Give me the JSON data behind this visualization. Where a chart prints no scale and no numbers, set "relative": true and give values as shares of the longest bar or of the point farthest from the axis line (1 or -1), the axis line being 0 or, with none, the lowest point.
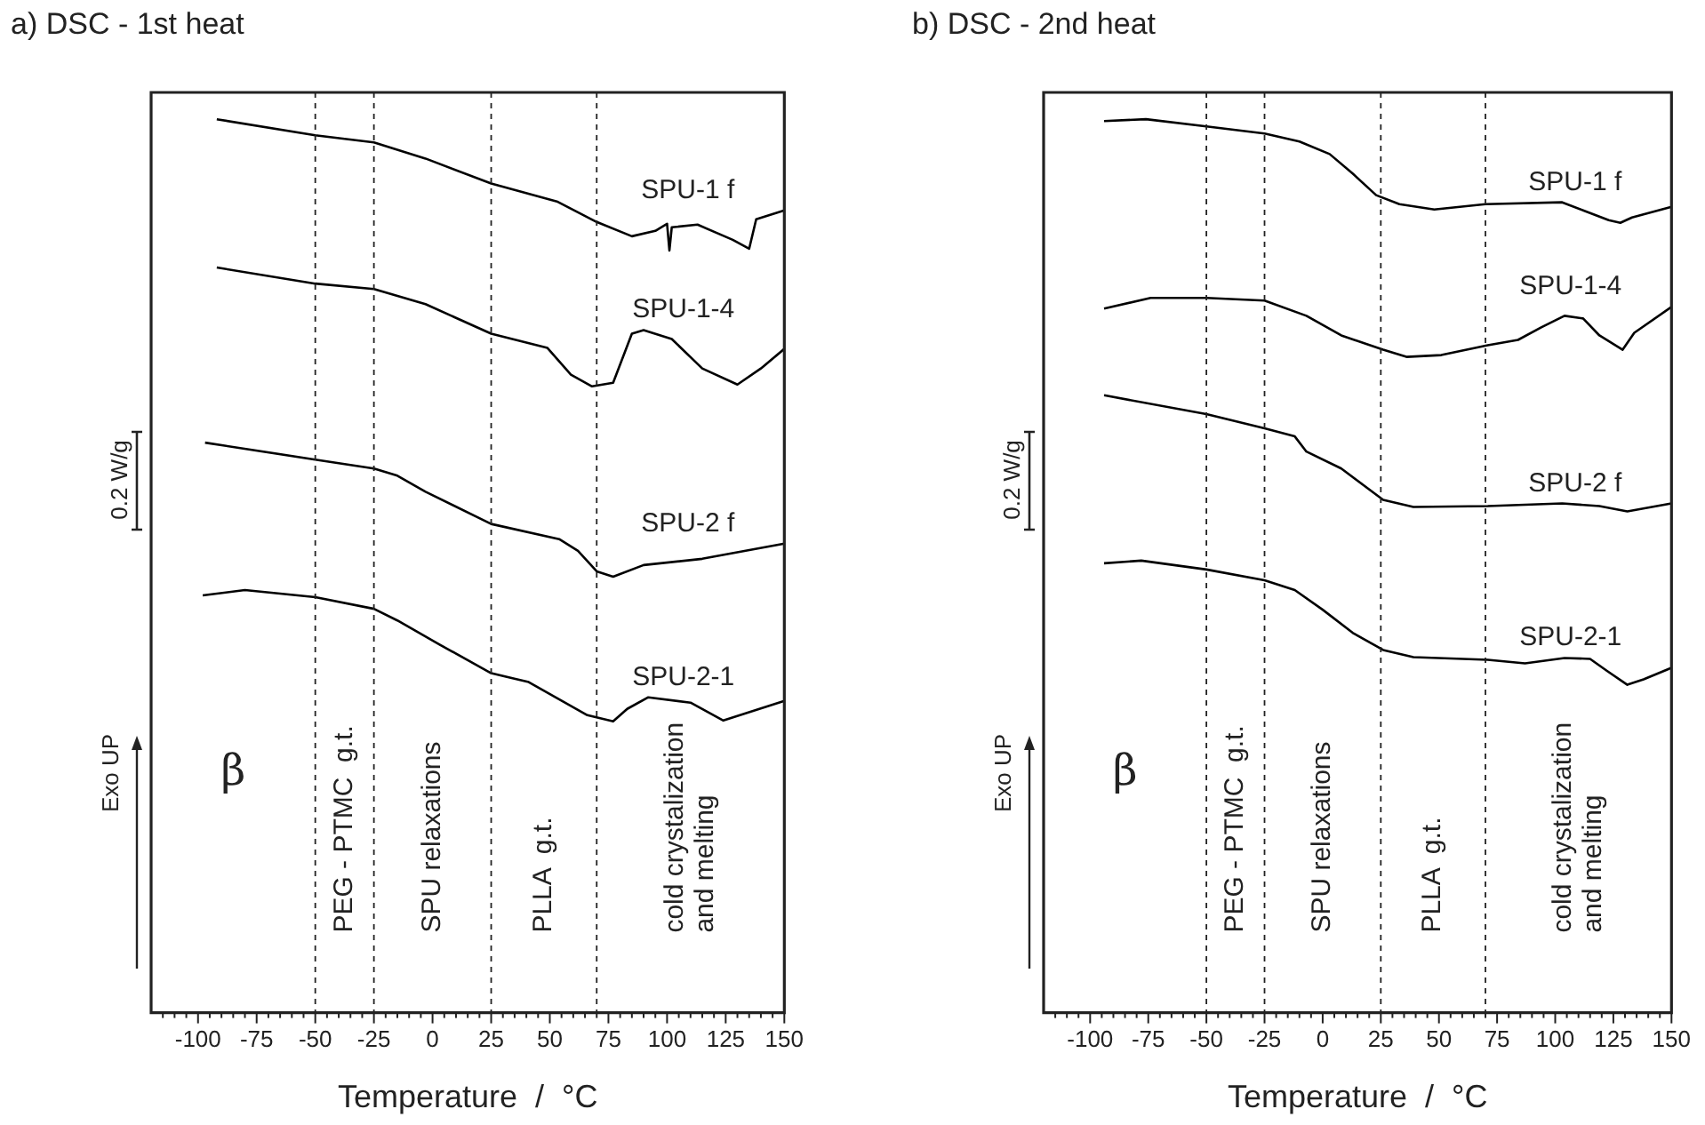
{
  "chart_data": [
    {
      "type": "line",
      "title": "a) DSC - 1st heat",
      "xlabel": "Temperature  /  °C",
      "relative": true,
      "xlim": [
        -120,
        150
      ],
      "xticks": [
        {
          "value": -115,
          "label": null
        },
        {
          "value": -110,
          "label": null
        },
        {
          "value": -105,
          "label": null
        },
        -100,
        {
          "value": -95,
          "label": null
        },
        {
          "value": -90,
          "label": null
        },
        {
          "value": -85,
          "label": null
        },
        {
          "value": -80,
          "label": null
        },
        -75,
        {
          "value": -70,
          "label": null
        },
        {
          "value": -65,
          "label": null
        },
        {
          "value": -60,
          "label": null
        },
        {
          "value": -55,
          "label": null
        },
        -50,
        {
          "value": -45,
          "label": null
        },
        {
          "value": -40,
          "label": null
        },
        {
          "value": -35,
          "label": null
        },
        {
          "value": -30,
          "label": null
        },
        -25,
        {
          "value": -20,
          "label": null
        },
        {
          "value": -15,
          "label": null
        },
        {
          "value": -10,
          "label": null
        },
        {
          "value": -5,
          "label": null
        },
        0,
        {
          "value": 5,
          "label": null
        },
        {
          "value": 10,
          "label": null
        },
        {
          "value": 15,
          "label": null
        },
        {
          "value": 20,
          "label": null
        },
        25,
        {
          "value": 30,
          "label": null
        },
        {
          "value": 35,
          "label": null
        },
        {
          "value": 40,
          "label": null
        },
        {
          "value": 45,
          "label": null
        },
        50,
        {
          "value": 55,
          "label": null
        },
        {
          "value": 60,
          "label": null
        },
        {
          "value": 65,
          "label": null
        },
        {
          "value": 70,
          "label": null
        },
        75,
        {
          "value": 80,
          "label": null
        },
        {
          "value": 85,
          "label": null
        },
        {
          "value": 90,
          "label": null
        },
        {
          "value": 95,
          "label": null
        },
        100,
        {
          "value": 105,
          "label": null
        },
        {
          "value": 110,
          "label": null
        },
        {
          "value": 115,
          "label": null
        },
        {
          "value": 120,
          "label": null
        },
        125,
        {
          "value": 130,
          "label": null
        },
        {
          "value": 135,
          "label": null
        },
        {
          "value": 140,
          "label": null
        },
        {
          "value": 145,
          "label": null
        },
        150
      ],
      "grid": false,
      "legend": false,
      "marker": "none",
      "line_style": "solid",
      "series": [
        {
          "name": "SPU-1 f",
          "color": "#000000",
          "x": [
            -92,
            -50,
            -25,
            -3,
            25,
            53,
            70,
            85,
            95,
            100,
            101,
            102,
            113,
            128,
            135,
            138,
            150
          ],
          "values": [
            1.0,
            0.982,
            0.974,
            0.956,
            0.928,
            0.908,
            0.885,
            0.869,
            0.875,
            0.883,
            0.853,
            0.879,
            0.882,
            0.865,
            0.855,
            0.888,
            0.898
          ]
        },
        {
          "name": "SPU-1-4",
          "color": "#000000",
          "x": [
            -92,
            -50,
            -25,
            -3,
            25,
            49,
            59,
            68,
            77,
            85,
            90,
            102,
            115,
            130,
            140,
            150
          ],
          "values": [
            0.834,
            0.816,
            0.81,
            0.793,
            0.76,
            0.744,
            0.714,
            0.701,
            0.705,
            0.76,
            0.764,
            0.754,
            0.721,
            0.703,
            0.721,
            0.743
          ]
        },
        {
          "name": "SPU-2 f",
          "color": "#000000",
          "x": [
            -97,
            -50,
            -25,
            -15,
            -3,
            25,
            54,
            62,
            70,
            77,
            90,
            115,
            150
          ],
          "values": [
            0.638,
            0.619,
            0.609,
            0.601,
            0.583,
            0.547,
            0.53,
            0.517,
            0.494,
            0.488,
            0.501,
            0.508,
            0.525
          ]
        },
        {
          "name": "SPU-2-1",
          "color": "#000000",
          "x": [
            -98,
            -80,
            -50,
            -25,
            -15,
            3,
            25,
            41,
            66,
            77,
            83,
            92,
            110,
            124,
            150
          ],
          "values": [
            0.467,
            0.473,
            0.465,
            0.452,
            0.439,
            0.412,
            0.38,
            0.37,
            0.333,
            0.326,
            0.34,
            0.353,
            0.347,
            0.327,
            0.349
          ]
        }
      ],
      "ref_lines": [
        {
          "axis": "x",
          "value": -50,
          "line_style": "dashed"
        },
        {
          "axis": "x",
          "value": -25,
          "line_style": "dashed"
        },
        {
          "axis": "x",
          "value": 25,
          "line_style": "dashed"
        },
        {
          "axis": "x",
          "value": 70,
          "line_style": "dashed"
        }
      ],
      "annotations": [
        "0.2 W/g",
        "Exo UP",
        "β",
        "PEG - PTMC  g.t.",
        "SPU relaxations",
        "PLLA  g.t.",
        "cold crystalization\nand melting"
      ]
    },
    {
      "type": "line",
      "title": "b) DSC - 2nd heat",
      "xlabel": "Temperature  /  °C",
      "relative": true,
      "xlim": [
        -120,
        150
      ],
      "xticks": [
        {
          "value": -115,
          "label": null
        },
        {
          "value": -110,
          "label": null
        },
        {
          "value": -105,
          "label": null
        },
        -100,
        {
          "value": -95,
          "label": null
        },
        {
          "value": -90,
          "label": null
        },
        {
          "value": -85,
          "label": null
        },
        {
          "value": -80,
          "label": null
        },
        -75,
        {
          "value": -70,
          "label": null
        },
        {
          "value": -65,
          "label": null
        },
        {
          "value": -60,
          "label": null
        },
        {
          "value": -55,
          "label": null
        },
        -50,
        {
          "value": -45,
          "label": null
        },
        {
          "value": -40,
          "label": null
        },
        {
          "value": -35,
          "label": null
        },
        {
          "value": -30,
          "label": null
        },
        -25,
        {
          "value": -20,
          "label": null
        },
        {
          "value": -15,
          "label": null
        },
        {
          "value": -10,
          "label": null
        },
        {
          "value": -5,
          "label": null
        },
        0,
        {
          "value": 5,
          "label": null
        },
        {
          "value": 10,
          "label": null
        },
        {
          "value": 15,
          "label": null
        },
        {
          "value": 20,
          "label": null
        },
        25,
        {
          "value": 30,
          "label": null
        },
        {
          "value": 35,
          "label": null
        },
        {
          "value": 40,
          "label": null
        },
        {
          "value": 45,
          "label": null
        },
        50,
        {
          "value": 55,
          "label": null
        },
        {
          "value": 60,
          "label": null
        },
        {
          "value": 65,
          "label": null
        },
        {
          "value": 70,
          "label": null
        },
        75,
        {
          "value": 80,
          "label": null
        },
        {
          "value": 85,
          "label": null
        },
        {
          "value": 90,
          "label": null
        },
        {
          "value": 95,
          "label": null
        },
        100,
        {
          "value": 105,
          "label": null
        },
        {
          "value": 110,
          "label": null
        },
        {
          "value": 115,
          "label": null
        },
        {
          "value": 120,
          "label": null
        },
        125,
        {
          "value": 130,
          "label": null
        },
        {
          "value": 135,
          "label": null
        },
        {
          "value": 140,
          "label": null
        },
        {
          "value": 145,
          "label": null
        },
        150
      ],
      "grid": false,
      "legend": false,
      "marker": "none",
      "line_style": "solid",
      "series": [
        {
          "name": "SPU-1 f",
          "color": "#000000",
          "x": [
            -94,
            -76,
            -50,
            -25,
            -10,
            3,
            13,
            23,
            33,
            48,
            70,
            103,
            113,
            123,
            128,
            133,
            150
          ],
          "values": [
            0.998,
            1.0,
            0.992,
            0.984,
            0.975,
            0.961,
            0.939,
            0.915,
            0.905,
            0.899,
            0.905,
            0.907,
            0.897,
            0.887,
            0.884,
            0.89,
            0.902
          ]
        },
        {
          "name": "SPU-1-4",
          "color": "#000000",
          "x": [
            -94,
            -74,
            -50,
            -25,
            -7,
            8,
            26,
            36,
            51,
            71,
            84,
            94,
            104,
            112,
            119,
            129,
            134,
            150
          ],
          "values": [
            0.788,
            0.8,
            0.8,
            0.797,
            0.78,
            0.758,
            0.742,
            0.734,
            0.736,
            0.747,
            0.753,
            0.767,
            0.78,
            0.777,
            0.758,
            0.742,
            0.761,
            0.79
          ]
        },
        {
          "name": "SPU-2 f",
          "color": "#000000",
          "x": [
            -94,
            -50,
            -25,
            -12,
            -7,
            8,
            26,
            39,
            71,
            103,
            119,
            131,
            150
          ],
          "values": [
            0.691,
            0.67,
            0.654,
            0.645,
            0.628,
            0.609,
            0.574,
            0.566,
            0.567,
            0.57,
            0.567,
            0.561,
            0.57
          ]
        },
        {
          "name": "SPU-2-1",
          "color": "#000000",
          "x": [
            -94,
            -78,
            -50,
            -25,
            -12,
            0,
            13,
            26,
            39,
            71,
            87,
            104,
            115,
            122,
            131,
            138,
            150
          ],
          "values": [
            0.503,
            0.506,
            0.496,
            0.484,
            0.473,
            0.451,
            0.425,
            0.406,
            0.398,
            0.395,
            0.391,
            0.397,
            0.396,
            0.383,
            0.367,
            0.373,
            0.386
          ]
        }
      ],
      "ref_lines": [
        {
          "axis": "x",
          "value": -50,
          "line_style": "dashed"
        },
        {
          "axis": "x",
          "value": -25,
          "line_style": "dashed"
        },
        {
          "axis": "x",
          "value": 25,
          "line_style": "dashed"
        },
        {
          "axis": "x",
          "value": 70,
          "line_style": "dashed"
        }
      ],
      "annotations": [
        "0.2 W/g",
        "Exo UP",
        "β",
        "PEG - PTMC  g.t.",
        "SPU relaxations",
        "PLLA  g.t.",
        "cold crystalization\nand melting"
      ]
    }
  ]
}
